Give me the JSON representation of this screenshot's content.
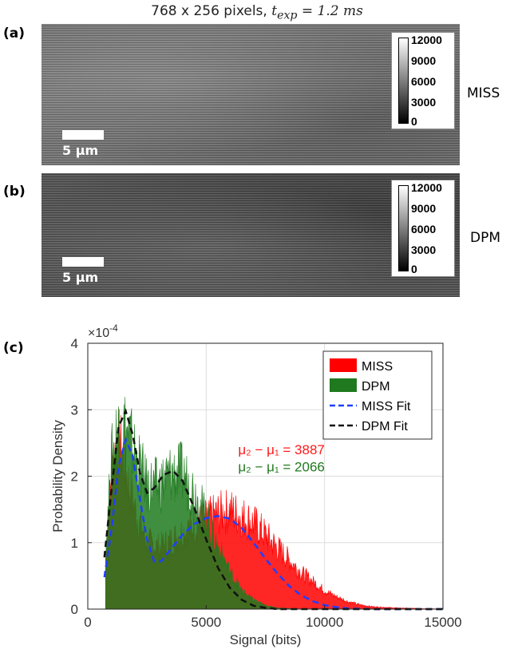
{
  "figure": {
    "title_prefix": "768 x 256 pixels, ",
    "title_math": "t",
    "title_sub": "exp",
    "title_rest": " = 1.2 ms"
  },
  "panel_a": {
    "label": "(a)",
    "side_label": "MISS",
    "scale_label": "5 μm",
    "colorbar_ticks": [
      "12000",
      "9000",
      "6000",
      "3000",
      "0"
    ]
  },
  "panel_b": {
    "label": "(b)",
    "side_label": "DPM",
    "scale_label": "5 μm",
    "colorbar_ticks": [
      "12000",
      "9000",
      "6000",
      "3000",
      "0"
    ]
  },
  "panel_c": {
    "label": "(c)"
  },
  "chart_data": {
    "type": "area",
    "xlabel": "Signal (bits)",
    "ylabel": "Probability Density",
    "exponent_label": "×10",
    "exponent_power": "-4",
    "xlim": [
      0,
      15000
    ],
    "ylim": [
      0,
      4
    ],
    "xticks": [
      0,
      5000,
      10000,
      15000
    ],
    "yticks": [
      0,
      1,
      2,
      3,
      4
    ],
    "grid": true,
    "legend_position": "top-right",
    "series": [
      {
        "name": "MISS",
        "kind": "histogram",
        "color": "#ff0000",
        "x": [
          750,
          1000,
          1250,
          1500,
          1750,
          2000,
          2500,
          3000,
          3500,
          4000,
          4500,
          5000,
          5500,
          6000,
          6500,
          7000,
          7500,
          8000,
          8500,
          9000,
          9500,
          10000,
          10500,
          11000,
          11500,
          12000,
          13000,
          14000,
          15000
        ],
        "y": [
          0.8,
          2.2,
          2.7,
          2.5,
          2.0,
          1.6,
          1.1,
          1.0,
          1.1,
          1.25,
          1.35,
          1.45,
          1.55,
          1.6,
          1.5,
          1.4,
          1.2,
          1.0,
          0.8,
          0.6,
          0.45,
          0.3,
          0.2,
          0.12,
          0.07,
          0.04,
          0.02,
          0.01,
          0.0
        ]
      },
      {
        "name": "DPM",
        "kind": "histogram",
        "color": "#1f7a1f",
        "x": [
          750,
          1000,
          1250,
          1500,
          1750,
          2000,
          2500,
          3000,
          3500,
          4000,
          4500,
          5000,
          5500,
          6000,
          6500,
          7000,
          7500,
          8000,
          8500,
          9000
        ],
        "y": [
          0.9,
          2.4,
          2.9,
          3.0,
          2.8,
          2.5,
          2.0,
          2.0,
          2.2,
          2.2,
          1.9,
          1.5,
          1.0,
          0.6,
          0.3,
          0.15,
          0.06,
          0.02,
          0.01,
          0.0
        ]
      },
      {
        "name": "MISS Fit",
        "kind": "fit",
        "color": "#1f3fff",
        "dash": "8,5",
        "x": [
          700,
          1000,
          1300,
          1600,
          1900,
          2200,
          2500,
          2800,
          3100,
          3500,
          4000,
          4500,
          5000,
          5500,
          6000,
          6500,
          7000,
          7500,
          8000,
          8500,
          9000,
          9500,
          10000,
          10500,
          11000,
          12000,
          13000,
          15000
        ],
        "y": [
          0.48,
          1.2,
          2.15,
          2.55,
          2.3,
          1.65,
          1.05,
          0.72,
          0.72,
          0.9,
          1.12,
          1.28,
          1.37,
          1.4,
          1.36,
          1.22,
          1.0,
          0.76,
          0.54,
          0.35,
          0.21,
          0.12,
          0.06,
          0.03,
          0.01,
          0.0,
          0.0,
          0.0
        ]
      },
      {
        "name": "DPM Fit",
        "kind": "fit",
        "color": "#111111",
        "dash": "8,5",
        "x": [
          700,
          1000,
          1300,
          1600,
          1900,
          2200,
          2500,
          2800,
          3200,
          3600,
          4000,
          4500,
          5000,
          5500,
          6000,
          6500,
          7000,
          7500,
          8000,
          9000,
          10000,
          12000,
          15000
        ],
        "y": [
          0.78,
          1.8,
          2.75,
          2.98,
          2.62,
          2.05,
          1.75,
          1.82,
          2.02,
          2.08,
          1.93,
          1.52,
          1.05,
          0.62,
          0.32,
          0.14,
          0.05,
          0.02,
          0.0,
          0.0,
          0.0,
          0.0,
          0.0
        ]
      }
    ],
    "annotations": [
      {
        "text": "μ₂ − μ₁ = 3887",
        "color": "#ff1a1a",
        "x": 6350,
        "y": 2.33
      },
      {
        "text": "μ₂ − μ₁ = 2066",
        "color": "#1f7a1f",
        "x": 6350,
        "y": 2.07
      }
    ]
  }
}
